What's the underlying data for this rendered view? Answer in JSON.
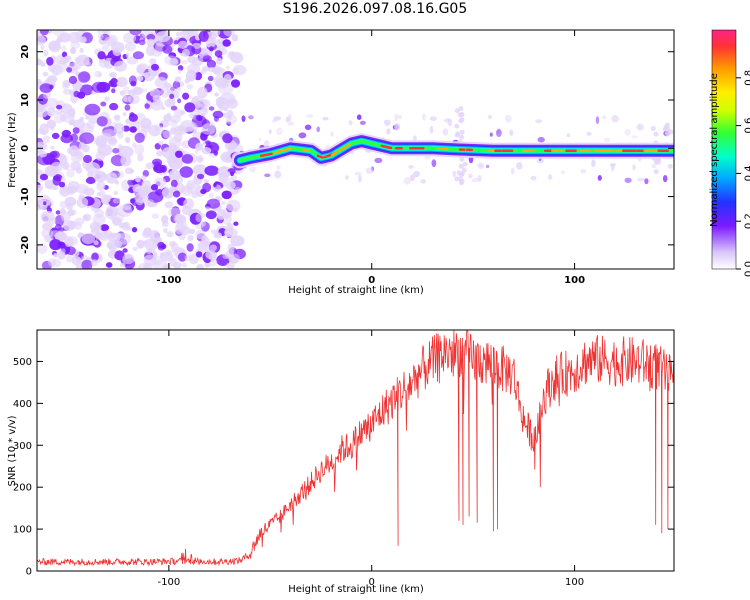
{
  "title": "S196.2026.097.08.16.G05",
  "colors": {
    "snr_line": "#ee3333",
    "noise_purple": "#7a1bff",
    "noise_light": "#e3d3fa"
  },
  "chart_data": [
    {
      "type": "heatmap",
      "title": "S196.2026.097.08.16.G05",
      "xlabel": "Height of straight line (km)",
      "ylabel": "Frequency (Hz)",
      "xlim": [
        -165,
        149
      ],
      "ylim": [
        -25,
        24.5
      ],
      "xticks": [
        -100,
        0,
        100
      ],
      "xtick_labels": [
        "-100",
        "0",
        "100"
      ],
      "yticks": [
        -20,
        -10,
        0,
        10,
        20
      ],
      "ytick_labels": [
        "-20",
        "-10",
        "0",
        "10",
        "20"
      ],
      "noise_region_x": [
        -165,
        -65
      ],
      "signal_band": {
        "x": [
          -65,
          -60,
          -50,
          -40,
          -30,
          -25,
          -20,
          -10,
          -5,
          0,
          10,
          20,
          30,
          40,
          60,
          80,
          100,
          120,
          149
        ],
        "freq": [
          -2.5,
          -2,
          -1.2,
          0,
          -0.5,
          -2,
          -1.5,
          1,
          1.5,
          1,
          0,
          0,
          0,
          -0.2,
          -0.5,
          -0.5,
          -0.5,
          -0.5,
          -0.5
        ]
      },
      "colorbar": {
        "label": "Normalized spectral amplitude",
        "range": [
          0,
          1
        ],
        "ticks": [
          0.0,
          0.2,
          0.4,
          0.6,
          0.8
        ],
        "tick_labels": [
          "0.0",
          "0.2",
          "0.4",
          "0.6",
          "0.8"
        ]
      }
    },
    {
      "type": "line",
      "xlabel": "Height of straight line (km)",
      "ylabel": "SNR (10 * v/v)",
      "xlim": [
        -165,
        149
      ],
      "ylim": [
        0,
        575
      ],
      "xticks": [
        -100,
        0,
        100
      ],
      "xtick_labels": [
        "-100",
        "0",
        "100"
      ],
      "yticks": [
        0,
        100,
        200,
        300,
        400,
        500
      ],
      "ytick_labels": [
        "0",
        "100",
        "200",
        "300",
        "400",
        "500"
      ],
      "series": [
        {
          "name": "SNR",
          "x": [
            -165,
            -150,
            -130,
            -110,
            -90,
            -75,
            -65,
            -60,
            -55,
            -50,
            -45,
            -40,
            -35,
            -30,
            -25,
            -20,
            -15,
            -10,
            -5,
            0,
            5,
            10,
            15,
            20,
            25,
            30,
            35,
            40,
            45,
            50,
            55,
            60,
            65,
            70,
            72,
            75,
            78,
            80,
            82,
            85,
            90,
            95,
            100,
            105,
            110,
            120,
            130,
            140,
            145,
            149
          ],
          "values": [
            22,
            22,
            22,
            22,
            24,
            22,
            25,
            40,
            90,
            110,
            130,
            160,
            185,
            210,
            240,
            260,
            290,
            300,
            330,
            350,
            380,
            405,
            430,
            450,
            480,
            500,
            520,
            525,
            520,
            505,
            500,
            495,
            480,
            470,
            420,
            360,
            330,
            320,
            340,
            420,
            460,
            470,
            480,
            500,
            505,
            500,
            500,
            490,
            470,
            450
          ]
        }
      ],
      "spikes_down": [
        {
          "x": 13,
          "value": 60
        },
        {
          "x": 43,
          "value": 120
        },
        {
          "x": 45,
          "value": 110
        },
        {
          "x": 48,
          "value": 130
        },
        {
          "x": 52,
          "value": 115
        },
        {
          "x": 60,
          "value": 95
        },
        {
          "x": 62,
          "value": 100
        },
        {
          "x": 140,
          "value": 110
        },
        {
          "x": 143,
          "value": 90
        },
        {
          "x": 146,
          "value": 100
        }
      ]
    }
  ]
}
